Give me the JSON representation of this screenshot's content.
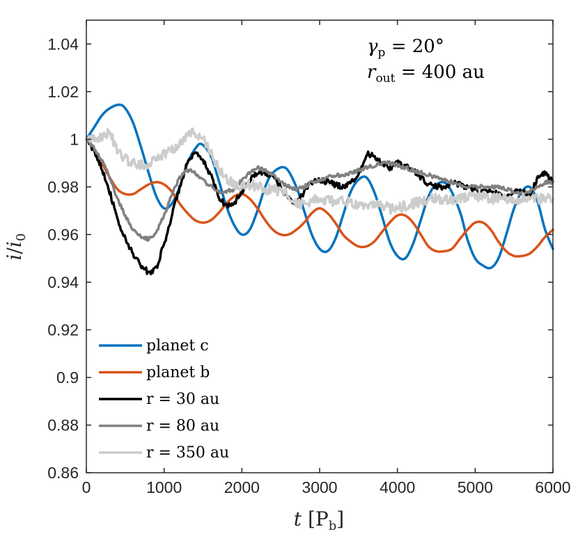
{
  "chart_data": {
    "type": "line",
    "title": "",
    "xlabel": "t [P_b]",
    "ylabel": "i/i_0",
    "xlim": [
      0,
      6000
    ],
    "ylim": [
      0.86,
      1.05
    ],
    "xticks": [
      0,
      1000,
      2000,
      3000,
      4000,
      5000,
      6000
    ],
    "xtick_labels": [
      "0",
      "1000",
      "2000",
      "3000",
      "4000",
      "5000",
      "6000"
    ],
    "yticks": [
      0.86,
      0.88,
      0.9,
      0.92,
      0.94,
      0.96,
      0.98,
      1.0,
      1.02,
      1.04
    ],
    "ytick_labels": [
      "0.86",
      "0.88",
      "0.9",
      "0.92",
      "0.94",
      "0.96",
      "0.98",
      "1",
      "1.02",
      "1.04"
    ],
    "grid": false,
    "legend_position": "bottom-left",
    "annotations": [
      "γp = 20°",
      "rout = 400 au"
    ],
    "series": [
      {
        "name": "planet c",
        "color": "#0072BD",
        "x": [
          0,
          100,
          200,
          300,
          420,
          500,
          600,
          700,
          800,
          900,
          1000,
          1100,
          1200,
          1300,
          1400,
          1480,
          1600,
          1700,
          1800,
          1900,
          2000,
          2100,
          2200,
          2300,
          2400,
          2560,
          2700,
          2800,
          2900,
          3000,
          3100,
          3200,
          3300,
          3400,
          3500,
          3600,
          3700,
          3800,
          3900,
          4000,
          4100,
          4200,
          4300,
          4400,
          4500,
          4640,
          4800,
          4900,
          5000,
          5100,
          5200,
          5300,
          5400,
          5500,
          5600,
          5700,
          5800,
          5900,
          6000
        ],
        "values": [
          1.0,
          1.005,
          1.01,
          1.013,
          1.0145,
          1.013,
          1.007,
          0.997,
          0.986,
          0.976,
          0.971,
          0.973,
          0.98,
          0.99,
          0.996,
          0.998,
          0.993,
          0.983,
          0.972,
          0.964,
          0.96,
          0.962,
          0.97,
          0.98,
          0.986,
          0.988,
          0.98,
          0.97,
          0.96,
          0.954,
          0.953,
          0.958,
          0.968,
          0.978,
          0.983,
          0.984,
          0.978,
          0.968,
          0.957,
          0.951,
          0.95,
          0.956,
          0.966,
          0.976,
          0.981,
          0.981,
          0.97,
          0.958,
          0.95,
          0.947,
          0.946,
          0.95,
          0.96,
          0.971,
          0.978,
          0.98,
          0.974,
          0.962,
          0.954
        ]
      },
      {
        "name": "planet b",
        "color": "#D95319",
        "x": [
          0,
          100,
          200,
          300,
          400,
          500,
          600,
          700,
          800,
          900,
          1000,
          1100,
          1200,
          1300,
          1400,
          1500,
          1600,
          1700,
          1800,
          1900,
          2000,
          2100,
          2200,
          2300,
          2400,
          2500,
          2600,
          2700,
          2800,
          2900,
          3000,
          3100,
          3200,
          3300,
          3400,
          3500,
          3600,
          3700,
          3800,
          3900,
          4000,
          4100,
          4200,
          4300,
          4400,
          4500,
          4600,
          4700,
          4800,
          4900,
          5000,
          5100,
          5200,
          5300,
          5400,
          5500,
          5600,
          5700,
          5800,
          5900,
          6000
        ],
        "values": [
          1.0,
          0.996,
          0.99,
          0.984,
          0.979,
          0.977,
          0.977,
          0.979,
          0.981,
          0.982,
          0.981,
          0.978,
          0.973,
          0.969,
          0.966,
          0.965,
          0.966,
          0.969,
          0.973,
          0.976,
          0.977,
          0.975,
          0.971,
          0.966,
          0.962,
          0.96,
          0.96,
          0.962,
          0.965,
          0.969,
          0.971,
          0.969,
          0.965,
          0.96,
          0.957,
          0.955,
          0.955,
          0.957,
          0.961,
          0.965,
          0.968,
          0.968,
          0.965,
          0.96,
          0.955,
          0.953,
          0.953,
          0.954,
          0.958,
          0.962,
          0.965,
          0.965,
          0.962,
          0.957,
          0.953,
          0.951,
          0.951,
          0.952,
          0.955,
          0.959,
          0.962
        ]
      },
      {
        "name": "r = 30 au",
        "color": "#000000",
        "x": [
          0,
          100,
          200,
          300,
          400,
          500,
          600,
          700,
          800,
          900,
          1000,
          1100,
          1200,
          1300,
          1400,
          1500,
          1600,
          1700,
          1800,
          1900,
          2000,
          2100,
          2200,
          2300,
          2400,
          2500,
          2600,
          2700,
          2800,
          2900,
          3000,
          3100,
          3200,
          3300,
          3400,
          3500,
          3600,
          3700,
          3800,
          3900,
          4000,
          4100,
          4200,
          4300,
          4400,
          4500,
          4600,
          4700,
          4800,
          4900,
          5000,
          5100,
          5200,
          5300,
          5400,
          5500,
          5600,
          5700,
          5800,
          5900,
          6000
        ],
        "values": [
          1.0,
          0.995,
          0.988,
          0.978,
          0.966,
          0.958,
          0.952,
          0.947,
          0.944,
          0.946,
          0.956,
          0.968,
          0.98,
          0.99,
          0.994,
          0.991,
          0.985,
          0.976,
          0.972,
          0.973,
          0.978,
          0.983,
          0.986,
          0.986,
          0.984,
          0.98,
          0.975,
          0.973,
          0.978,
          0.982,
          0.983,
          0.982,
          0.981,
          0.98,
          0.982,
          0.985,
          0.994,
          0.993,
          0.99,
          0.988,
          0.99,
          0.989,
          0.987,
          0.984,
          0.981,
          0.98,
          0.98,
          0.982,
          0.981,
          0.98,
          0.979,
          0.978,
          0.978,
          0.977,
          0.976,
          0.978,
          0.978,
          0.976,
          0.984,
          0.986,
          0.982
        ]
      },
      {
        "name": "r = 80 au",
        "color": "#808080",
        "x": [
          0,
          100,
          200,
          300,
          400,
          500,
          600,
          700,
          800,
          900,
          1000,
          1100,
          1200,
          1300,
          1400,
          1500,
          1600,
          1700,
          1800,
          1900,
          2000,
          2100,
          2200,
          2300,
          2400,
          2500,
          2600,
          2700,
          2800,
          2900,
          3000,
          3100,
          3200,
          3300,
          3400,
          3500,
          3600,
          3700,
          3800,
          3900,
          4000,
          4100,
          4200,
          4300,
          4400,
          4500,
          4600,
          4700,
          4800,
          4900,
          5000,
          5100,
          5200,
          5300,
          5400,
          5500,
          5600,
          5700,
          5800,
          5900,
          6000
        ],
        "values": [
          1.0,
          0.996,
          0.991,
          0.984,
          0.975,
          0.968,
          0.962,
          0.959,
          0.958,
          0.961,
          0.968,
          0.977,
          0.984,
          0.987,
          0.986,
          0.983,
          0.98,
          0.978,
          0.978,
          0.979,
          0.983,
          0.986,
          0.988,
          0.987,
          0.985,
          0.982,
          0.98,
          0.979,
          0.98,
          0.982,
          0.983,
          0.984,
          0.985,
          0.985,
          0.986,
          0.987,
          0.988,
          0.989,
          0.99,
          0.99,
          0.989,
          0.988,
          0.987,
          0.986,
          0.985,
          0.984,
          0.983,
          0.982,
          0.981,
          0.98,
          0.98,
          0.98,
          0.98,
          0.98,
          0.979,
          0.978,
          0.977,
          0.978,
          0.98,
          0.982,
          0.982
        ]
      },
      {
        "name": "r = 350 au",
        "color": "#CCCCCC",
        "x": [
          0,
          100,
          200,
          300,
          400,
          500,
          600,
          700,
          800,
          900,
          1000,
          1100,
          1200,
          1300,
          1400,
          1500,
          1600,
          1700,
          1800,
          1900,
          2000,
          2100,
          2200,
          2300,
          2400,
          2500,
          2600,
          2700,
          2800,
          2900,
          3000,
          3100,
          3200,
          3300,
          3400,
          3500,
          3600,
          3700,
          3800,
          3900,
          4000,
          4100,
          4200,
          4300,
          4400,
          4500,
          4600,
          4700,
          4800,
          4900,
          5000,
          5100,
          5200,
          5300,
          5400,
          5500,
          5600,
          5700,
          5800,
          5900,
          6000
        ],
        "values": [
          1.0,
          1.001,
          1.001,
          1.003,
          0.995,
          0.992,
          0.99,
          0.989,
          0.99,
          0.992,
          0.994,
          0.996,
          0.998,
          1.002,
          1.003,
          1.0,
          0.994,
          0.988,
          0.983,
          0.981,
          0.98,
          0.981,
          0.98,
          0.979,
          0.979,
          0.978,
          0.977,
          0.973,
          0.973,
          0.974,
          0.975,
          0.974,
          0.974,
          0.974,
          0.973,
          0.973,
          0.973,
          0.972,
          0.972,
          0.971,
          0.971,
          0.972,
          0.973,
          0.974,
          0.975,
          0.975,
          0.975,
          0.975,
          0.975,
          0.976,
          0.976,
          0.976,
          0.975,
          0.975,
          0.975,
          0.975,
          0.975,
          0.975,
          0.975,
          0.975,
          0.975
        ]
      }
    ]
  }
}
